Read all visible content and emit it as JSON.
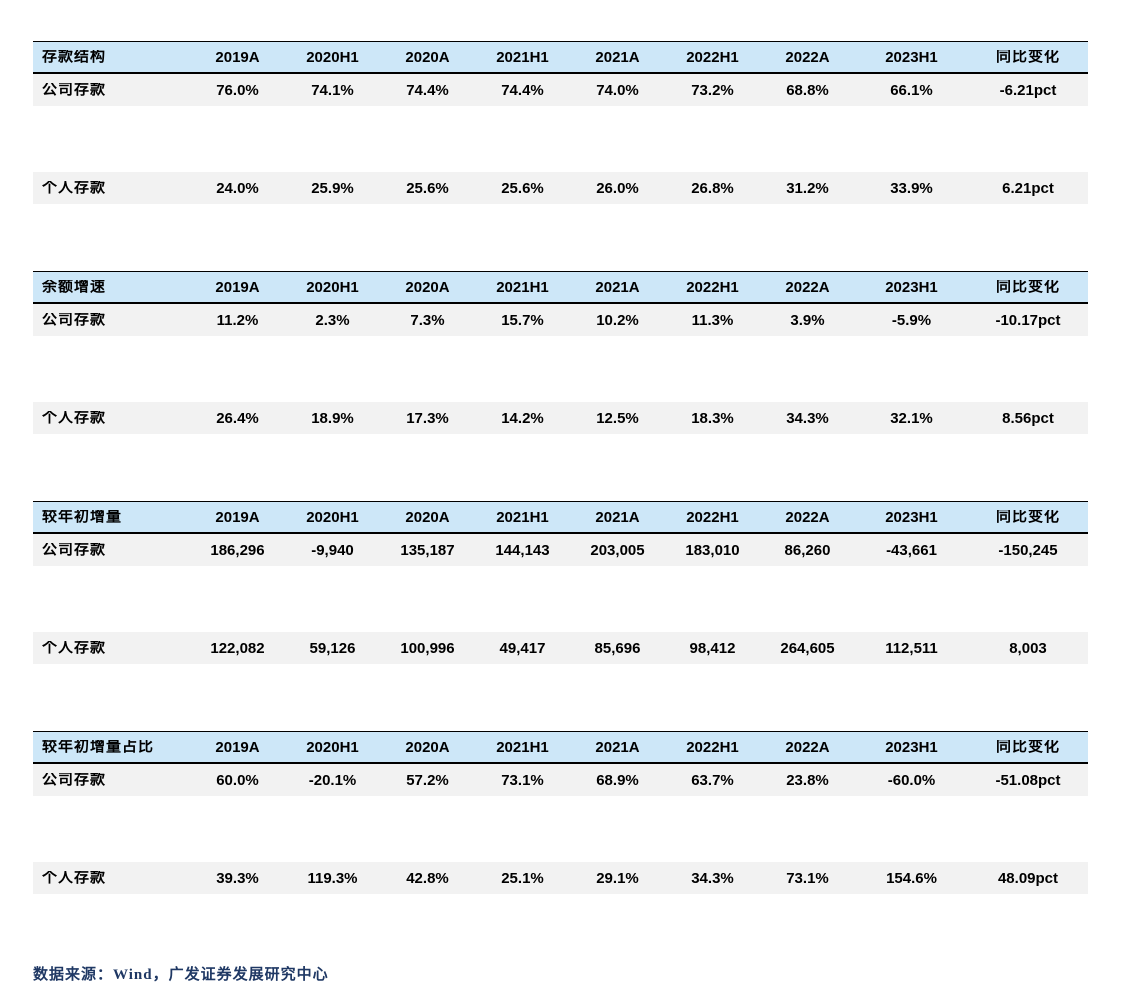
{
  "colors": {
    "header_bg": "#cde7f8",
    "row_bg": "#f2f2f2",
    "border": "#000000",
    "footer_text": "#1f3864"
  },
  "columns": [
    "2019A",
    "2020H1",
    "2020A",
    "2021H1",
    "2021A",
    "2022H1",
    "2022A",
    "2023H1",
    "同比变化"
  ],
  "tables": [
    {
      "title": "存款结构",
      "rows": [
        {
          "label": "公司存款",
          "values": [
            "76.0%",
            "74.1%",
            "74.4%",
            "74.4%",
            "74.0%",
            "73.2%",
            "68.8%",
            "66.1%",
            "-6.21pct"
          ]
        },
        {
          "label": "个人存款",
          "values": [
            "24.0%",
            "25.9%",
            "25.6%",
            "25.6%",
            "26.0%",
            "26.8%",
            "31.2%",
            "33.9%",
            "6.21pct"
          ]
        }
      ]
    },
    {
      "title": "余额增速",
      "rows": [
        {
          "label": "公司存款",
          "values": [
            "11.2%",
            "2.3%",
            "7.3%",
            "15.7%",
            "10.2%",
            "11.3%",
            "3.9%",
            "-5.9%",
            "-10.17pct"
          ]
        },
        {
          "label": "个人存款",
          "values": [
            "26.4%",
            "18.9%",
            "17.3%",
            "14.2%",
            "12.5%",
            "18.3%",
            "34.3%",
            "32.1%",
            "8.56pct"
          ]
        }
      ]
    },
    {
      "title": "较年初增量",
      "rows": [
        {
          "label": "公司存款",
          "values": [
            "186,296",
            "-9,940",
            "135,187",
            "144,143",
            "203,005",
            "183,010",
            "86,260",
            "-43,661",
            "-150,245"
          ]
        },
        {
          "label": "个人存款",
          "values": [
            "122,082",
            "59,126",
            "100,996",
            "49,417",
            "85,696",
            "98,412",
            "264,605",
            "112,511",
            "8,003"
          ]
        }
      ]
    },
    {
      "title": "较年初增量占比",
      "rows": [
        {
          "label": "公司存款",
          "values": [
            "60.0%",
            "-20.1%",
            "57.2%",
            "73.1%",
            "68.9%",
            "63.7%",
            "23.8%",
            "-60.0%",
            "-51.08pct"
          ]
        },
        {
          "label": "个人存款",
          "values": [
            "39.3%",
            "119.3%",
            "42.8%",
            "25.1%",
            "29.1%",
            "34.3%",
            "73.1%",
            "154.6%",
            "48.09pct"
          ]
        }
      ]
    }
  ],
  "footer": {
    "source": "数据来源：Wind，广发证券发展研究中心"
  }
}
